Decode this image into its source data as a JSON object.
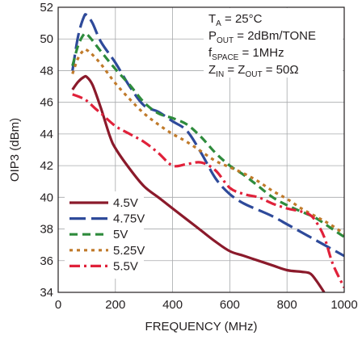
{
  "chart_data": {
    "type": "line",
    "xlabel": "FREQUENCY (MHz)",
    "ylabel": "OIP3 (dBm)",
    "xlim": [
      0,
      1000
    ],
    "ylim": [
      34,
      52
    ],
    "x_ticks": [
      "0",
      "200",
      "400",
      "600",
      "800",
      "1000"
    ],
    "y_ticks": [
      "34",
      "36",
      "38",
      "40",
      "42",
      "44",
      "46",
      "48",
      "50",
      "52"
    ],
    "grid": true,
    "legend_position": "bottom-left",
    "annotations": [
      {
        "parts": [
          {
            "t": "T"
          },
          {
            "t": "A",
            "sub": true
          },
          {
            "t": " = 25°C"
          }
        ]
      },
      {
        "parts": [
          {
            "t": "P"
          },
          {
            "t": "OUT",
            "sub": true
          },
          {
            "t": " = 2dBm/TONE"
          }
        ]
      },
      {
        "parts": [
          {
            "t": "f"
          },
          {
            "t": "SPACE",
            "sub": true
          },
          {
            "t": " = 1MHz"
          }
        ]
      },
      {
        "parts": [
          {
            "t": "Z"
          },
          {
            "t": "IN",
            "sub": true
          },
          {
            "t": " = Z"
          },
          {
            "t": "OUT",
            "sub": true
          },
          {
            "t": " = 50Ω"
          }
        ]
      }
    ],
    "series": [
      {
        "name": "4.5V",
        "color": "#8b1a2b",
        "dash": "solid",
        "x": [
          50,
          70,
          90,
          100,
          120,
          150,
          180,
          200,
          250,
          300,
          350,
          400,
          450,
          500,
          550,
          600,
          650,
          700,
          750,
          800,
          850,
          880,
          900,
          930
        ],
        "y": [
          46.8,
          47.3,
          47.6,
          47.6,
          47.1,
          45.6,
          43.9,
          43.1,
          41.8,
          40.7,
          40.0,
          39.3,
          38.6,
          37.9,
          37.2,
          36.6,
          36.3,
          36.0,
          35.7,
          35.4,
          35.3,
          35.2,
          34.8,
          34.0
        ]
      },
      {
        "name": "4.75V",
        "color": "#2e4a9a",
        "dash": "long-dash",
        "x": [
          50,
          70,
          90,
          100,
          120,
          150,
          200,
          250,
          300,
          350,
          400,
          450,
          500,
          550,
          600,
          650,
          700,
          750,
          800,
          850,
          900,
          950,
          1000
        ],
        "y": [
          48.0,
          50.2,
          51.4,
          51.5,
          51.0,
          49.8,
          48.5,
          47.0,
          45.8,
          45.4,
          44.8,
          44.2,
          42.8,
          41.2,
          40.2,
          39.6,
          39.2,
          38.8,
          38.3,
          37.8,
          37.3,
          36.8,
          36.3
        ]
      },
      {
        "name": "5V",
        "color": "#2e8b3c",
        "dash": "dash",
        "x": [
          50,
          70,
          90,
          100,
          120,
          150,
          200,
          250,
          300,
          350,
          400,
          450,
          500,
          550,
          600,
          650,
          700,
          750,
          800,
          850,
          900,
          950,
          1000
        ],
        "y": [
          48.3,
          49.6,
          50.3,
          50.3,
          49.9,
          49.2,
          48.1,
          47.1,
          46.0,
          45.3,
          45.0,
          44.6,
          43.8,
          42.8,
          42.0,
          41.4,
          40.7,
          40.0,
          39.5,
          39.1,
          38.7,
          38.1,
          37.5
        ]
      },
      {
        "name": "5.25V",
        "color": "#c07a2a",
        "dash": "dot",
        "x": [
          50,
          70,
          90,
          100,
          120,
          150,
          200,
          250,
          300,
          350,
          400,
          450,
          500,
          550,
          600,
          650,
          700,
          750,
          800,
          850,
          900,
          950,
          1000
        ],
        "y": [
          47.8,
          48.8,
          49.3,
          49.3,
          49.0,
          48.4,
          47.2,
          46.2,
          45.3,
          44.6,
          44.0,
          43.5,
          42.9,
          42.3,
          41.9,
          41.5,
          41.0,
          40.4,
          39.9,
          39.3,
          38.8,
          38.3,
          37.7
        ]
      },
      {
        "name": "5.5V",
        "color": "#e0213a",
        "dash": "dash-dot",
        "x": [
          50,
          80,
          100,
          130,
          150,
          200,
          250,
          300,
          350,
          400,
          450,
          500,
          550,
          600,
          650,
          700,
          750,
          800,
          850,
          880,
          900,
          930,
          960,
          1000
        ],
        "y": [
          46.5,
          46.3,
          46.1,
          45.6,
          45.3,
          44.5,
          44.0,
          43.5,
          42.8,
          42.0,
          42.1,
          42.2,
          41.7,
          40.6,
          40.2,
          40.0,
          39.6,
          39.3,
          39.1,
          38.9,
          38.5,
          37.5,
          35.8,
          34.3
        ]
      }
    ]
  }
}
